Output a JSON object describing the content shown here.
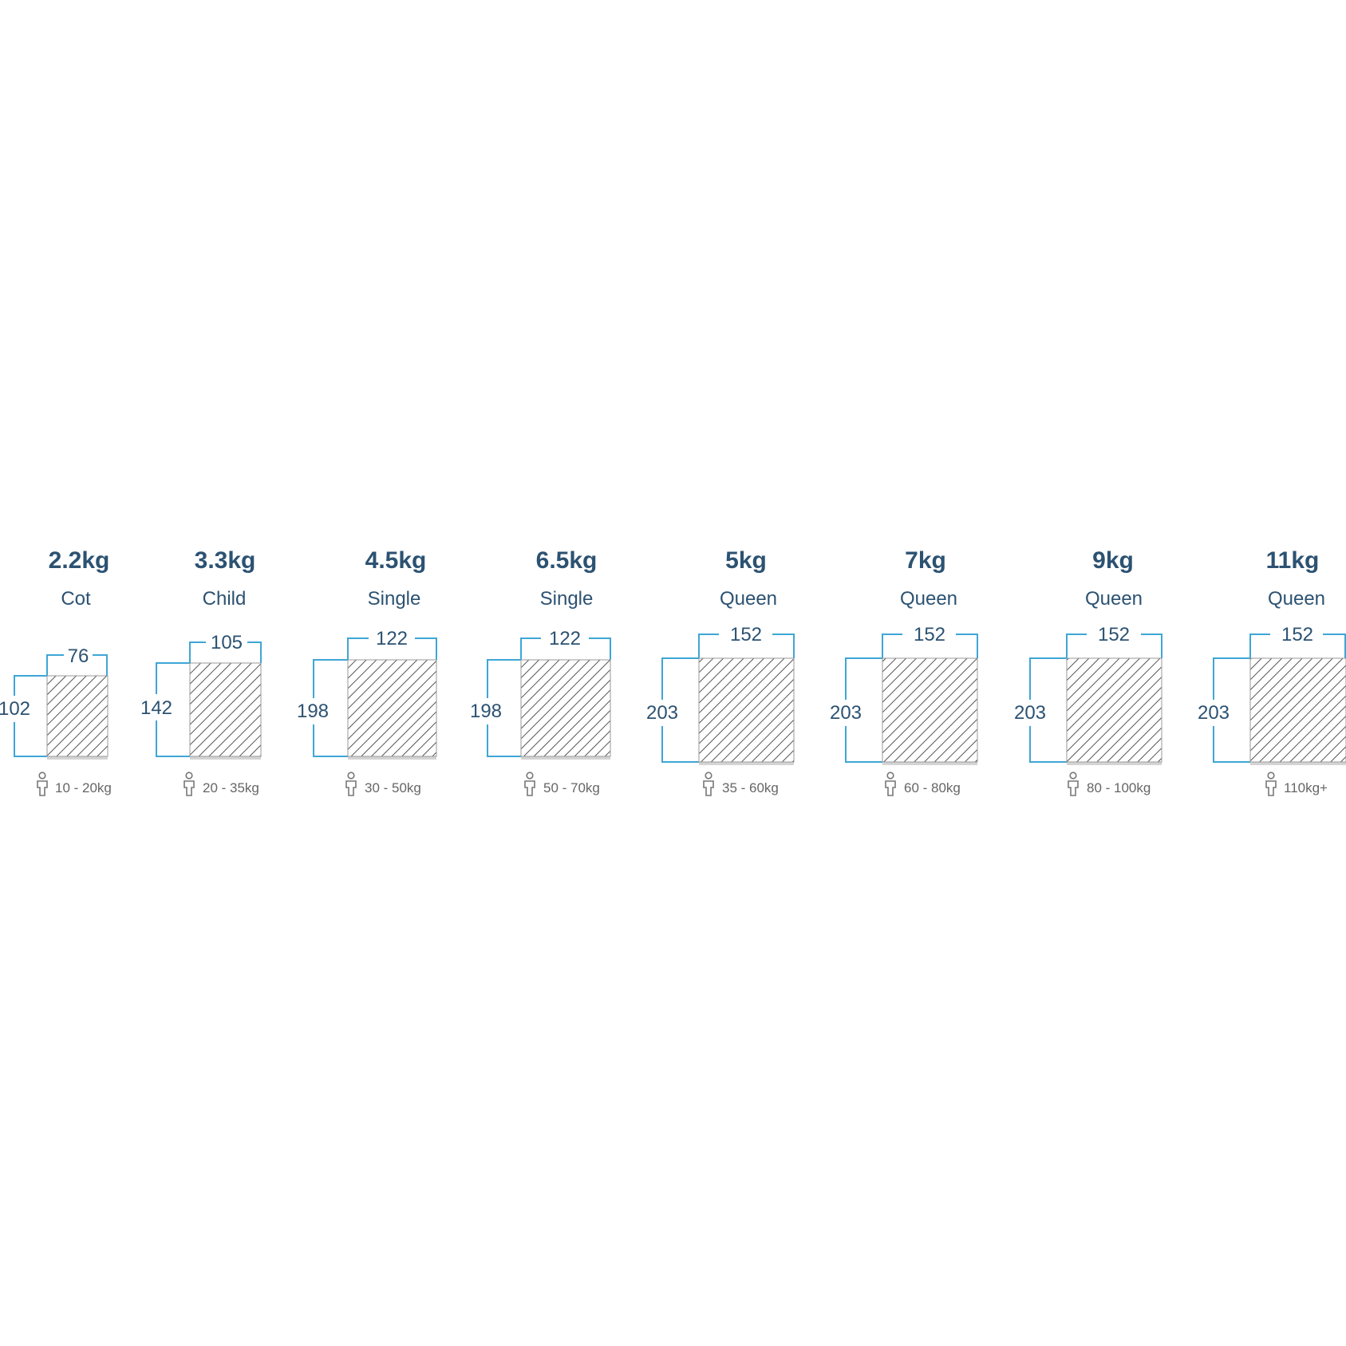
{
  "colors": {
    "text": "#2c5272",
    "bracket": "#3ea6d6",
    "muted": "#666666",
    "hatch": "#555555"
  },
  "icon": "person-icon",
  "items": [
    {
      "weight": "2.2kg",
      "size": "Cot",
      "width": "76",
      "length": "102",
      "range": "10 - 20kg"
    },
    {
      "weight": "3.3kg",
      "size": "Child",
      "width": "105",
      "length": "142",
      "range": "20 - 35kg"
    },
    {
      "weight": "4.5kg",
      "size": "Single",
      "width": "122",
      "length": "198",
      "range": "30 - 50kg"
    },
    {
      "weight": "6.5kg",
      "size": "Single",
      "width": "122",
      "length": "198",
      "range": "50 - 70kg"
    },
    {
      "weight": "5kg",
      "size": "Queen",
      "width": "152",
      "length": "203",
      "range": "35 - 60kg"
    },
    {
      "weight": "7kg",
      "size": "Queen",
      "width": "152",
      "length": "203",
      "range": "60 - 80kg"
    },
    {
      "weight": "9kg",
      "size": "Queen",
      "width": "152",
      "length": "203",
      "range": "80 - 100kg"
    },
    {
      "weight": "11kg",
      "size": "Queen",
      "width": "152",
      "length": "203",
      "range": "110kg+"
    }
  ]
}
